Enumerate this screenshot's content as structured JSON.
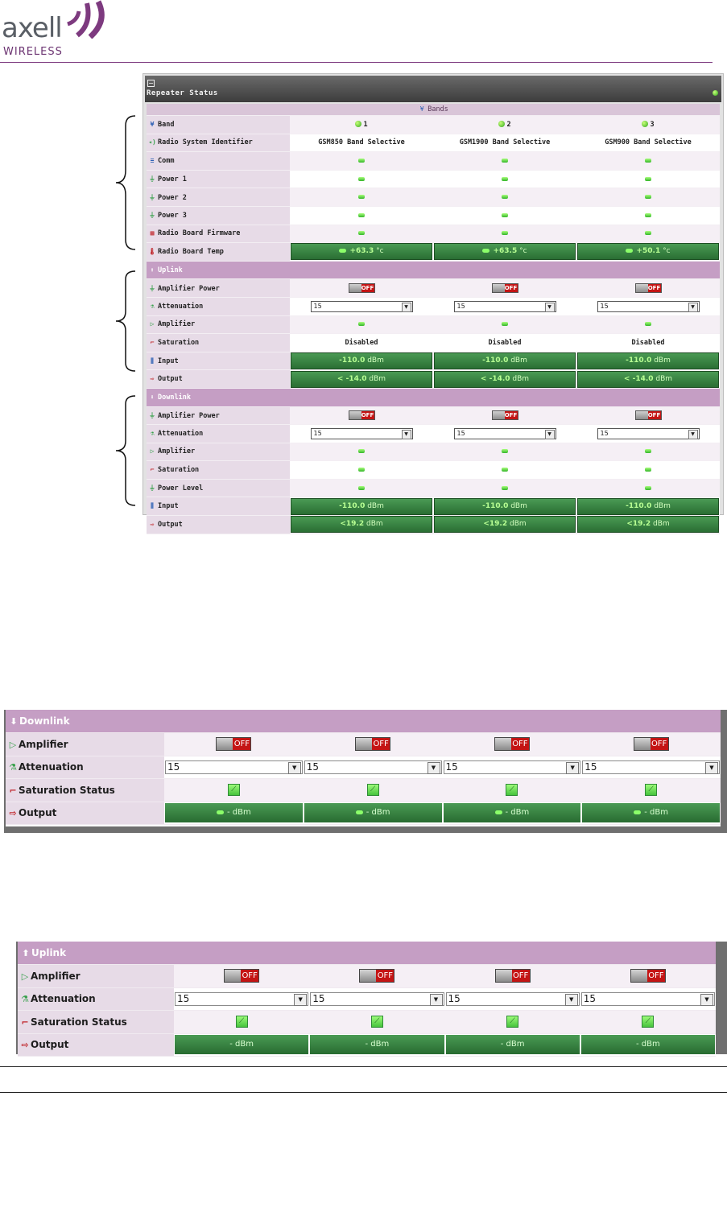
{
  "logo": {
    "brand": "axell",
    "sub": "WIRELESS"
  },
  "repeater": {
    "title": "Repeater Status",
    "bands_header": "Bands",
    "rows": {
      "band": "Band",
      "rsi": "Radio System Identifier",
      "comm": "Comm",
      "power1": "Power 1",
      "power2": "Power 2",
      "power3": "Power 3",
      "firmware": "Radio Board Firmware",
      "temp": "Radio Board Temp"
    },
    "bands": [
      "1",
      "2",
      "3"
    ],
    "rsi_values": [
      "GSM850 Band Selective",
      "GSM1900 Band Selective",
      "GSM900 Band Selective"
    ],
    "temps": [
      "+63.3",
      "+63.5",
      "+50.1"
    ],
    "temp_unit": "°c",
    "uplink": {
      "title": "Uplink",
      "amp_power": "Amplifier Power",
      "attenuation": "Attenuation",
      "amplifier": "Amplifier",
      "saturation": "Saturation",
      "input": "Input",
      "output": "Output",
      "off": "OFF",
      "att_values": [
        "15",
        "15",
        "15"
      ],
      "sat_values": [
        "Disabled",
        "Disabled",
        "Disabled"
      ],
      "input_values": [
        "-110.0",
        "-110.0",
        "-110.0"
      ],
      "output_values": [
        "< -14.0",
        "< -14.0",
        "< -14.0"
      ]
    },
    "downlink": {
      "title": "Downlink",
      "amp_power": "Amplifier Power",
      "attenuation": "Attenuation",
      "amplifier": "Amplifier",
      "saturation": "Saturation",
      "power_level": "Power Level",
      "input": "Input",
      "output": "Output",
      "off": "OFF",
      "att_values": [
        "15",
        "15",
        "15"
      ],
      "input_values": [
        "-110.0",
        "-110.0",
        "-110.0"
      ],
      "output_values": [
        "<19.2",
        "<19.2",
        "<19.2"
      ]
    },
    "unit": "dBm"
  },
  "downlink_panel": {
    "title": "Downlink",
    "amplifier": "Amplifier",
    "attenuation": "Attenuation",
    "saturation": "Saturation Status",
    "output": "Output",
    "off": "OFF",
    "att_values": [
      "15",
      "15",
      "15",
      "15"
    ],
    "output_values": [
      "- dBm",
      "- dBm",
      "- dBm",
      "- dBm"
    ]
  },
  "uplink_panel": {
    "title": "Uplink",
    "amplifier": "Amplifier",
    "attenuation": "Attenuation",
    "saturation": "Saturation Status",
    "output": "Output",
    "off": "OFF",
    "att_values": [
      "15",
      "15",
      "15",
      "15"
    ],
    "output_values": [
      "- dBm",
      "- dBm",
      "- dBm",
      "- dBm"
    ]
  },
  "colors": {
    "accent": "#7d3a7f",
    "section": "#c59ec4",
    "label_bg": "#e7dbe7",
    "meter": "#3a8a45",
    "off": "#c41414"
  }
}
